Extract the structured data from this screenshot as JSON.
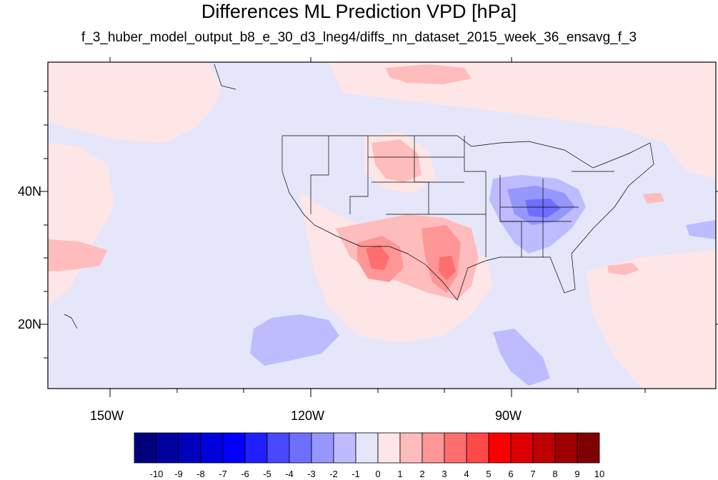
{
  "title": "Differences ML Prediction VPD [hPa]",
  "subtitle": "f_3_huber_model_output_b8_e_30_d3_lneg4/diffs_nn_dataset_2015_week_36_ensavg_f_3",
  "map": {
    "lat_labels": [
      "40N",
      "20N"
    ],
    "lon_labels": [
      "150W",
      "120W",
      "90W"
    ]
  },
  "colorbar": {
    "labels": [
      "-10",
      "-9",
      "-8",
      "-7",
      "-6",
      "-5",
      "-4",
      "-3",
      "-2",
      "-1",
      "0",
      "1",
      "2",
      "3",
      "4",
      "5",
      "6",
      "7",
      "8",
      "9",
      "10"
    ],
    "colors": [
      "#00007f",
      "#00009e",
      "#0000bd",
      "#0000dc",
      "#0000fb",
      "#1e1eff",
      "#4848ff",
      "#6e6eff",
      "#9696ff",
      "#bcbcff",
      "#e6e6fa",
      "#ffe6e6",
      "#ffbcbc",
      "#ff9696",
      "#ff6e6e",
      "#ff4848",
      "#fb0000",
      "#dc0000",
      "#bd0000",
      "#9e0000",
      "#7f0000"
    ]
  }
}
